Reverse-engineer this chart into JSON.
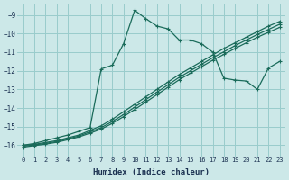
{
  "xlabel": "Humidex (Indice chaleur)",
  "background_color": "#cce8e8",
  "grid_color": "#99cccc",
  "line_color": "#1a6b5a",
  "xlim": [
    -0.5,
    23.5
  ],
  "ylim": [
    -16.6,
    -8.4
  ],
  "yticks": [
    -16,
    -15,
    -14,
    -13,
    -12,
    -11,
    -10,
    -9
  ],
  "xticks": [
    0,
    1,
    2,
    3,
    4,
    5,
    6,
    7,
    8,
    9,
    10,
    11,
    12,
    13,
    14,
    15,
    16,
    17,
    18,
    19,
    20,
    21,
    22,
    23
  ],
  "line1_x": [
    0,
    1,
    2,
    3,
    4,
    5,
    6,
    7,
    8,
    9,
    10,
    11,
    12,
    13,
    14,
    15,
    16,
    17,
    18,
    19,
    20,
    21,
    22,
    23
  ],
  "line1_y": [
    -16.0,
    -15.95,
    -15.85,
    -15.75,
    -15.6,
    -15.45,
    -15.2,
    -14.95,
    -14.6,
    -14.2,
    -13.8,
    -13.4,
    -13.0,
    -12.6,
    -12.2,
    -11.85,
    -11.5,
    -11.15,
    -10.8,
    -10.5,
    -10.2,
    -9.9,
    -9.6,
    -9.35
  ],
  "line2_x": [
    0,
    1,
    2,
    3,
    4,
    5,
    6,
    7,
    8,
    9,
    10,
    11,
    12,
    13,
    14,
    15,
    16,
    17,
    18,
    19,
    20,
    21,
    22,
    23
  ],
  "line2_y": [
    -16.05,
    -15.98,
    -15.9,
    -15.8,
    -15.65,
    -15.5,
    -15.28,
    -15.05,
    -14.72,
    -14.35,
    -13.95,
    -13.55,
    -13.15,
    -12.75,
    -12.35,
    -12.0,
    -11.65,
    -11.3,
    -10.98,
    -10.65,
    -10.35,
    -10.05,
    -9.78,
    -9.5
  ],
  "line3_x": [
    0,
    1,
    2,
    3,
    4,
    5,
    6,
    7,
    8,
    9,
    10,
    11,
    12,
    13,
    14,
    15,
    16,
    17,
    18,
    19,
    20,
    21,
    22,
    23
  ],
  "line3_y": [
    -16.1,
    -16.02,
    -15.94,
    -15.84,
    -15.7,
    -15.55,
    -15.35,
    -15.13,
    -14.82,
    -14.46,
    -14.08,
    -13.68,
    -13.28,
    -12.88,
    -12.48,
    -12.13,
    -11.78,
    -11.43,
    -11.12,
    -10.8,
    -10.5,
    -10.2,
    -9.93,
    -9.67
  ],
  "main_x": [
    0,
    1,
    2,
    3,
    4,
    5,
    6,
    7,
    8,
    9,
    10,
    11,
    12,
    13,
    14,
    15,
    16,
    17,
    18,
    19,
    20,
    21,
    22,
    23
  ],
  "main_y": [
    -16.0,
    -15.9,
    -15.75,
    -15.6,
    -15.45,
    -15.25,
    -15.05,
    -11.9,
    -11.7,
    -10.55,
    -8.75,
    -9.2,
    -9.6,
    -9.75,
    -10.35,
    -10.35,
    -10.55,
    -11.0,
    -12.4,
    -12.5,
    -12.55,
    -13.0,
    -11.85,
    -11.5
  ]
}
